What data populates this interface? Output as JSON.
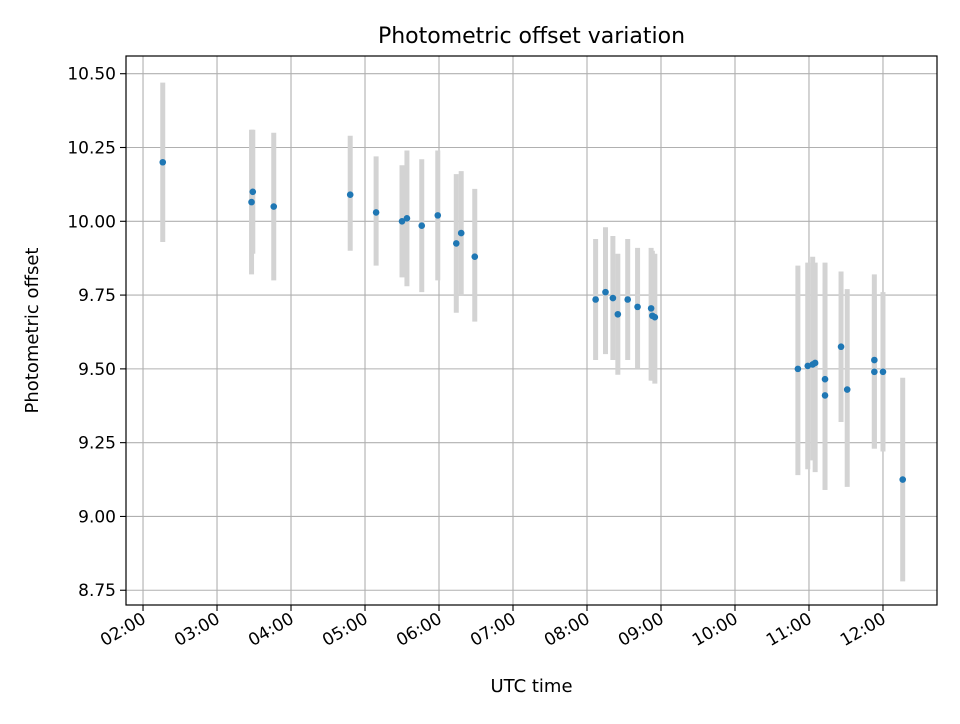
{
  "chart_data": {
    "type": "scatter",
    "title": "Photometric offset variation",
    "xlabel": "UTC time",
    "ylabel": "Photometric offset",
    "x_ticks": [
      "02:00",
      "03:00",
      "04:00",
      "05:00",
      "06:00",
      "07:00",
      "08:00",
      "09:00",
      "10:00",
      "11:00",
      "12:00"
    ],
    "x_tick_hours": [
      2,
      3,
      4,
      5,
      6,
      7,
      8,
      9,
      10,
      11,
      12
    ],
    "y_ticks": [
      "8.75",
      "9.00",
      "9.25",
      "9.50",
      "9.75",
      "10.00",
      "10.25",
      "10.50"
    ],
    "y_tick_values": [
      8.75,
      9.0,
      9.25,
      9.5,
      9.75,
      10.0,
      10.25,
      10.5
    ],
    "xlim_hours": [
      1.77,
      12.73
    ],
    "ylim": [
      8.7,
      10.56
    ],
    "grid": true,
    "colors": {
      "point": "#1f77b4",
      "errorbar": "#d3d3d3",
      "grid": "#b0b0b0",
      "axes": "#000000"
    },
    "points": [
      {
        "time": "02:16",
        "value": 10.2,
        "low": 9.93,
        "high": 10.47
      },
      {
        "time": "03:28",
        "value": 10.065,
        "low": 9.82,
        "high": 10.31
      },
      {
        "time": "03:29",
        "value": 10.1,
        "low": 9.89,
        "high": 10.31
      },
      {
        "time": "03:46",
        "value": 10.05,
        "low": 9.8,
        "high": 10.3
      },
      {
        "time": "04:48",
        "value": 10.09,
        "low": 9.9,
        "high": 10.29
      },
      {
        "time": "05:09",
        "value": 10.03,
        "low": 9.85,
        "high": 10.22
      },
      {
        "time": "05:30",
        "value": 10.0,
        "low": 9.81,
        "high": 10.19
      },
      {
        "time": "05:34",
        "value": 10.01,
        "low": 9.78,
        "high": 10.24
      },
      {
        "time": "05:46",
        "value": 9.985,
        "low": 9.76,
        "high": 10.21
      },
      {
        "time": "05:59",
        "value": 10.02,
        "low": 9.8,
        "high": 10.24
      },
      {
        "time": "06:14",
        "value": 9.925,
        "low": 9.69,
        "high": 10.16
      },
      {
        "time": "06:18",
        "value": 9.96,
        "low": 9.75,
        "high": 10.17
      },
      {
        "time": "06:29",
        "value": 9.88,
        "low": 9.66,
        "high": 10.11
      },
      {
        "time": "08:07",
        "value": 9.735,
        "low": 9.53,
        "high": 9.94
      },
      {
        "time": "08:15",
        "value": 9.76,
        "low": 9.55,
        "high": 9.98
      },
      {
        "time": "08:21",
        "value": 9.74,
        "low": 9.53,
        "high": 9.95
      },
      {
        "time": "08:25",
        "value": 9.685,
        "low": 9.48,
        "high": 9.89
      },
      {
        "time": "08:33",
        "value": 9.735,
        "low": 9.53,
        "high": 9.94
      },
      {
        "time": "08:41",
        "value": 9.71,
        "low": 9.5,
        "high": 9.91
      },
      {
        "time": "08:52",
        "value": 9.705,
        "low": 9.46,
        "high": 9.91
      },
      {
        "time": "08:53",
        "value": 9.68,
        "low": 9.46,
        "high": 9.9
      },
      {
        "time": "08:55",
        "value": 9.675,
        "low": 9.45,
        "high": 9.89
      },
      {
        "time": "10:51",
        "value": 9.5,
        "low": 9.14,
        "high": 9.85
      },
      {
        "time": "10:59",
        "value": 9.51,
        "low": 9.16,
        "high": 9.86
      },
      {
        "time": "11:03",
        "value": 9.515,
        "low": 9.19,
        "high": 9.88
      },
      {
        "time": "11:05",
        "value": 9.52,
        "low": 9.15,
        "high": 9.86
      },
      {
        "time": "11:13",
        "value": 9.465,
        "low": 9.09,
        "high": 9.86
      },
      {
        "time": "11:13",
        "value": 9.41,
        "low": 9.09,
        "high": 9.79
      },
      {
        "time": "11:26",
        "value": 9.575,
        "low": 9.32,
        "high": 9.83
      },
      {
        "time": "11:31",
        "value": 9.43,
        "low": 9.1,
        "high": 9.77
      },
      {
        "time": "11:53",
        "value": 9.53,
        "low": 9.23,
        "high": 9.82
      },
      {
        "time": "11:53",
        "value": 9.49,
        "low": 9.23,
        "high": 9.75
      },
      {
        "time": "12:00",
        "value": 9.49,
        "low": 9.22,
        "high": 9.76
      },
      {
        "time": "12:16",
        "value": 9.125,
        "low": 8.78,
        "high": 9.47
      }
    ]
  }
}
